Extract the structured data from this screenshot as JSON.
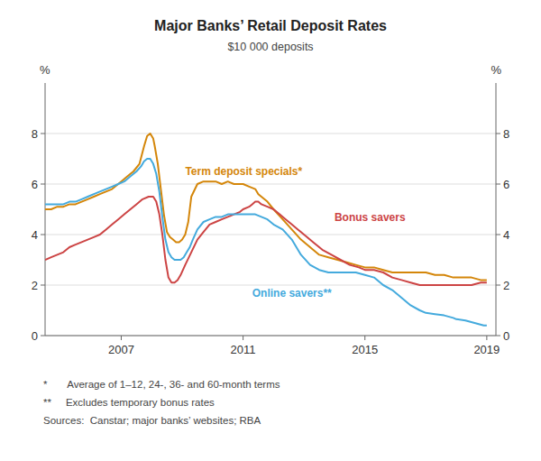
{
  "chart_data": {
    "type": "line",
    "title": "Major Banks’ Retail Deposit Rates",
    "subtitle": "$10 000 deposits",
    "ylabel": "%",
    "y2label": "%",
    "footnotes": [
      "*       Average of 1–12, 24-, 36- and 60-month terms",
      "**     Excludes temporary bonus rates",
      "Sources:  Canstar; major banks’ websites; RBA"
    ],
    "xlim": [
      2004.5,
      2019.3
    ],
    "xticks": [
      2007,
      2011,
      2015,
      2019
    ],
    "ylim": [
      0,
      10
    ],
    "yticks": [
      0,
      2,
      4,
      6,
      8
    ],
    "y2lim": [
      0,
      10
    ],
    "y2ticks": [
      0,
      2,
      4,
      6,
      8
    ],
    "grid": true,
    "annotations": [
      {
        "text": "Term deposit specials*",
        "x": 2009.1,
        "y": 6.35,
        "color": "#D4860A"
      },
      {
        "text": "Bonus savers",
        "x": 2014.0,
        "y": 4.55,
        "color": "#CC4444"
      },
      {
        "text": "Online savers**",
        "x": 2011.3,
        "y": 1.55,
        "color": "#44AADD"
      }
    ],
    "series": [
      {
        "color": "#D4860A",
        "x": [
          2004.5,
          2004.7,
          2004.9,
          2005.1,
          2005.3,
          2005.5,
          2005.7,
          2005.9,
          2006.1,
          2006.3,
          2006.5,
          2006.7,
          2006.9,
          2007.0,
          2007.2,
          2007.4,
          2007.6,
          2007.75,
          2007.85,
          2007.95,
          2008.05,
          2008.1,
          2008.2,
          2008.3,
          2008.4,
          2008.5,
          2008.6,
          2008.7,
          2008.8,
          2008.9,
          2009.0,
          2009.1,
          2009.2,
          2009.3,
          2009.5,
          2009.7,
          2009.9,
          2010.1,
          2010.3,
          2010.5,
          2010.7,
          2010.9,
          2011.0,
          2011.2,
          2011.4,
          2011.5,
          2011.6,
          2011.8,
          2012.0,
          2012.3,
          2012.6,
          2012.9,
          2013.2,
          2013.5,
          2013.8,
          2014.1,
          2014.4,
          2014.7,
          2015.0,
          2015.3,
          2015.6,
          2015.9,
          2016.2,
          2016.5,
          2016.8,
          2017.0,
          2017.3,
          2017.6,
          2017.9,
          2018.2,
          2018.5,
          2018.8,
          2019.0
        ],
        "values": [
          5.0,
          5.0,
          5.1,
          5.1,
          5.2,
          5.2,
          5.3,
          5.4,
          5.5,
          5.6,
          5.7,
          5.8,
          6.0,
          6.1,
          6.3,
          6.5,
          6.8,
          7.5,
          7.9,
          8.0,
          7.8,
          7.5,
          6.8,
          5.8,
          4.8,
          4.1,
          3.9,
          3.8,
          3.7,
          3.7,
          3.8,
          4.0,
          4.5,
          5.5,
          6.0,
          6.1,
          6.1,
          6.1,
          6.0,
          6.1,
          6.0,
          6.0,
          6.0,
          5.9,
          5.8,
          5.6,
          5.5,
          5.3,
          5.0,
          4.6,
          4.2,
          3.8,
          3.5,
          3.2,
          3.1,
          3.0,
          2.9,
          2.8,
          2.7,
          2.7,
          2.6,
          2.5,
          2.5,
          2.5,
          2.5,
          2.5,
          2.4,
          2.4,
          2.3,
          2.3,
          2.3,
          2.2,
          2.2
        ]
      },
      {
        "color": "#CC4444",
        "x": [
          2004.5,
          2004.7,
          2004.9,
          2005.1,
          2005.3,
          2005.5,
          2005.7,
          2005.9,
          2006.1,
          2006.3,
          2006.5,
          2006.7,
          2006.9,
          2007.1,
          2007.3,
          2007.5,
          2007.7,
          2007.9,
          2008.05,
          2008.15,
          2008.25,
          2008.35,
          2008.45,
          2008.55,
          2008.65,
          2008.75,
          2008.85,
          2008.95,
          2009.1,
          2009.3,
          2009.5,
          2009.7,
          2009.9,
          2010.1,
          2010.3,
          2010.5,
          2010.7,
          2010.9,
          2011.0,
          2011.2,
          2011.3,
          2011.4,
          2011.5,
          2011.6,
          2011.8,
          2012.0,
          2012.2,
          2012.4,
          2012.6,
          2012.8,
          2013.0,
          2013.3,
          2013.6,
          2013.9,
          2014.2,
          2014.5,
          2014.8,
          2015.0,
          2015.3,
          2015.6,
          2015.9,
          2016.2,
          2016.5,
          2016.8,
          2017.0,
          2017.3,
          2017.6,
          2017.9,
          2018.2,
          2018.5,
          2018.8,
          2019.0
        ],
        "values": [
          3.0,
          3.1,
          3.2,
          3.3,
          3.5,
          3.6,
          3.7,
          3.8,
          3.9,
          4.0,
          4.2,
          4.4,
          4.6,
          4.8,
          5.0,
          5.2,
          5.4,
          5.5,
          5.5,
          5.3,
          4.8,
          4.0,
          3.0,
          2.3,
          2.1,
          2.1,
          2.2,
          2.4,
          2.8,
          3.3,
          3.8,
          4.1,
          4.4,
          4.5,
          4.6,
          4.7,
          4.8,
          4.9,
          5.0,
          5.1,
          5.2,
          5.3,
          5.3,
          5.2,
          5.1,
          5.0,
          4.8,
          4.6,
          4.4,
          4.2,
          4.0,
          3.7,
          3.4,
          3.2,
          3.0,
          2.8,
          2.7,
          2.6,
          2.6,
          2.5,
          2.3,
          2.2,
          2.1,
          2.0,
          2.0,
          2.0,
          2.0,
          2.0,
          2.0,
          2.0,
          2.1,
          2.1
        ]
      },
      {
        "color": "#44AADD",
        "x": [
          2004.5,
          2004.7,
          2004.9,
          2005.1,
          2005.3,
          2005.5,
          2005.7,
          2005.9,
          2006.1,
          2006.3,
          2006.5,
          2006.7,
          2006.9,
          2007.1,
          2007.3,
          2007.5,
          2007.65,
          2007.75,
          2007.85,
          2007.95,
          2008.05,
          2008.15,
          2008.25,
          2008.35,
          2008.45,
          2008.55,
          2008.65,
          2008.75,
          2008.85,
          2008.95,
          2009.05,
          2009.15,
          2009.25,
          2009.35,
          2009.5,
          2009.7,
          2009.9,
          2010.1,
          2010.3,
          2010.5,
          2010.7,
          2010.9,
          2011.0,
          2011.2,
          2011.4,
          2011.6,
          2011.8,
          2012.0,
          2012.3,
          2012.6,
          2012.9,
          2013.2,
          2013.5,
          2013.8,
          2014.1,
          2014.4,
          2014.7,
          2015.0,
          2015.3,
          2015.6,
          2015.9,
          2016.2,
          2016.5,
          2016.8,
          2017.0,
          2017.3,
          2017.6,
          2017.9,
          2018.0,
          2018.3,
          2018.6,
          2018.9,
          2019.0
        ],
        "values": [
          5.2,
          5.2,
          5.2,
          5.2,
          5.3,
          5.3,
          5.4,
          5.5,
          5.6,
          5.7,
          5.8,
          5.9,
          6.0,
          6.1,
          6.3,
          6.5,
          6.7,
          6.9,
          7.0,
          7.0,
          6.8,
          6.4,
          5.7,
          4.7,
          3.8,
          3.3,
          3.1,
          3.0,
          3.0,
          3.0,
          3.1,
          3.3,
          3.5,
          3.8,
          4.2,
          4.5,
          4.6,
          4.7,
          4.7,
          4.8,
          4.8,
          4.8,
          4.8,
          4.8,
          4.8,
          4.7,
          4.6,
          4.4,
          4.2,
          3.8,
          3.2,
          2.8,
          2.6,
          2.5,
          2.5,
          2.5,
          2.5,
          2.4,
          2.3,
          2.0,
          1.8,
          1.5,
          1.2,
          1.0,
          0.9,
          0.85,
          0.8,
          0.7,
          0.65,
          0.6,
          0.5,
          0.4,
          0.4
        ]
      }
    ]
  }
}
